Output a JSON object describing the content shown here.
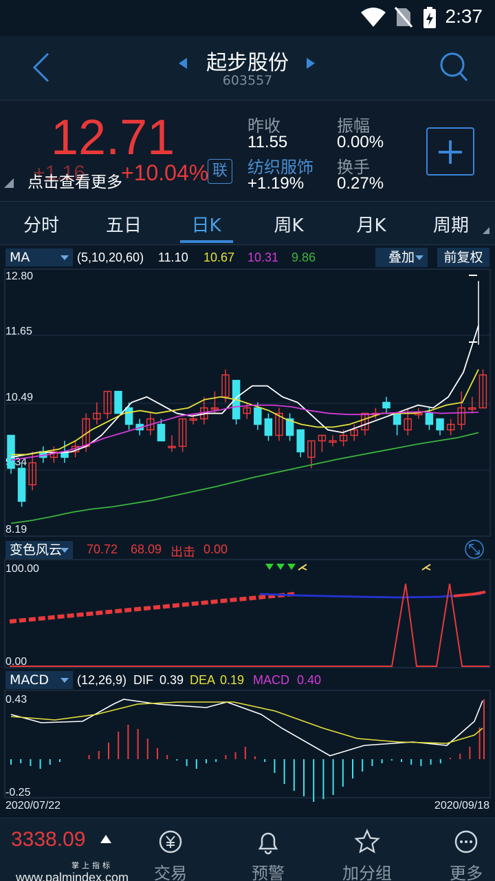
{
  "status_bar": {
    "time": "2:37"
  },
  "header": {
    "title": "起步股份",
    "code": "603557"
  },
  "quote": {
    "price": "12.71",
    "change": "+1.16",
    "change_pct": "+10.04%",
    "tip": "点击查看更多",
    "lian_label": "联",
    "prev_close_label": "昨收",
    "prev_close": "11.55",
    "amplitude_label": "振幅",
    "amplitude": "0.00%",
    "industry": "纺织服饰",
    "industry_change": "+1.19%",
    "turnover_label": "换手",
    "turnover": "0.27%"
  },
  "tabs": [
    "分时",
    "五日",
    "日K",
    "周K",
    "月K",
    "周期"
  ],
  "active_tab": "日K",
  "ma_panel": {
    "selector": "MA",
    "params": "(5,10,20,60)",
    "ma5": "11.10",
    "ma10": "10.67",
    "ma20": "10.31",
    "ma60": "9.86",
    "overlay_button": "叠加",
    "adjust_button": "前复权",
    "y_labels": [
      "12.80",
      "11.65",
      "10.49",
      "9.34",
      "8.19"
    ]
  },
  "indicator_panel": {
    "selector": "变色风云",
    "v1": "70.72",
    "v2": "68.09",
    "v3_label": "出击",
    "v3": "0.00",
    "y_top": "100.00",
    "y_bottom": "0.00"
  },
  "macd_panel": {
    "selector": "MACD",
    "params": "(12,26,9)",
    "dif_label": "DIF",
    "dif": "0.39",
    "dea_label": "DEA",
    "dea": "0.19",
    "macd_label": "MACD",
    "macd": "0.40",
    "y_top": "0.43",
    "y_bottom": "-0.25",
    "date_start": "2020/07/22",
    "date_end": "2020/09/18"
  },
  "bottom_nav": {
    "index_value": "3338.09",
    "watermark": "www.palmindex.com",
    "watermark_small": "掌上指标",
    "items": [
      "交易",
      "预警",
      "加分组",
      "更多"
    ]
  },
  "colors": {
    "up": "#e8393a",
    "down": "#3ee3ee",
    "ma5": "#ffffff",
    "ma10": "#e8e13a",
    "ma20": "#d43ad6",
    "ma60": "#3cb43c",
    "accent": "#3a86d8"
  }
}
